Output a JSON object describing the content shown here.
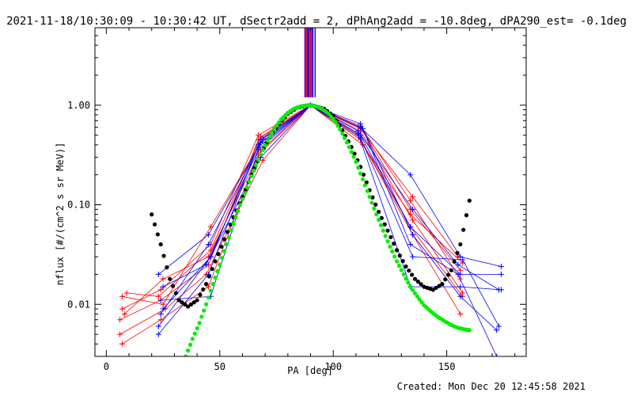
{
  "chart_data": {
    "type": "line",
    "title": "2021-11-18/10:30:09 - 10:30:42 UT, dSectr2add = 2, dPhAng2add = -10.8deg, dPA290_est= -0.1deg",
    "xlabel": "PA [deg]",
    "ylabel": "nflux [#/(cm^2 s sr MeV)]",
    "xlim": [
      -5,
      185
    ],
    "ylim": [
      0.003,
      6.0
    ],
    "yscale": "log",
    "x_ticks": [
      0,
      50,
      100,
      150
    ],
    "x_tick_labels": [
      "0",
      "50",
      "100",
      "150"
    ],
    "y_ticks": [
      0.01,
      0.1,
      1.0
    ],
    "y_tick_labels": [
      "0.01",
      "0.10",
      "1.00"
    ],
    "grid": false,
    "colors": {
      "red": "#ff0000",
      "blue": "#0000ff",
      "green": "#00ee00",
      "black": "#000000",
      "purple": "#7a0090"
    },
    "series": [
      {
        "color": "red",
        "marker": "+",
        "points": [
          [
            6,
            0.007
          ],
          [
            24,
            0.011
          ],
          [
            45,
            0.025
          ],
          [
            67,
            0.45
          ],
          [
            90,
            1.0
          ],
          [
            112,
            0.6
          ],
          [
            134,
            0.09
          ],
          [
            156,
            0.022
          ]
        ]
      },
      {
        "color": "red",
        "marker": "+",
        "points": [
          [
            7,
            0.009
          ],
          [
            24,
            0.014
          ],
          [
            46,
            0.04
          ],
          [
            67,
            0.5
          ],
          [
            90,
            1.0
          ],
          [
            112,
            0.62
          ],
          [
            134,
            0.11
          ],
          [
            156,
            0.018
          ]
        ]
      },
      {
        "color": "red",
        "marker": "+",
        "points": [
          [
            7,
            0.012
          ],
          [
            25,
            0.01
          ],
          [
            46,
            0.06
          ],
          [
            68,
            0.42
          ],
          [
            90,
            1.0
          ],
          [
            112,
            0.55
          ],
          [
            135,
            0.07
          ],
          [
            157,
            0.013
          ]
        ]
      },
      {
        "color": "red",
        "marker": "+",
        "points": [
          [
            8,
            0.008
          ],
          [
            25,
            0.018
          ],
          [
            45,
            0.03
          ],
          [
            68,
            0.35
          ],
          [
            90,
            1.0
          ],
          [
            111,
            0.5
          ],
          [
            134,
            0.06
          ],
          [
            157,
            0.012
          ]
        ]
      },
      {
        "color": "red",
        "marker": "+",
        "points": [
          [
            6,
            0.005
          ],
          [
            26,
            0.009
          ],
          [
            44,
            0.02
          ],
          [
            69,
            0.28
          ],
          [
            90,
            1.0
          ],
          [
            112,
            0.45
          ],
          [
            135,
            0.05
          ],
          [
            156,
            0.008
          ]
        ]
      },
      {
        "color": "red",
        "marker": "+",
        "points": [
          [
            7,
            0.004
          ],
          [
            24,
            0.007
          ],
          [
            45,
            0.015
          ],
          [
            67,
            0.32
          ],
          [
            90,
            1.0
          ],
          [
            113,
            0.4
          ],
          [
            134,
            0.08
          ],
          [
            157,
            0.026
          ]
        ]
      },
      {
        "color": "red",
        "marker": "+",
        "points": [
          [
            9,
            0.013
          ],
          [
            23,
            0.012
          ],
          [
            46,
            0.035
          ],
          [
            68,
            0.48
          ],
          [
            90,
            1.0
          ],
          [
            112,
            0.58
          ],
          [
            135,
            0.12
          ],
          [
            155,
            0.03
          ]
        ]
      },
      {
        "color": "blue",
        "marker": "+",
        "points": [
          [
            23,
            0.005
          ],
          [
            45,
            0.02
          ],
          [
            67,
            0.4
          ],
          [
            90,
            1.0
          ],
          [
            112,
            0.6
          ],
          [
            134,
            0.2
          ],
          [
            156,
            0.03
          ],
          [
            174,
            0.024
          ]
        ]
      },
      {
        "color": "blue",
        "marker": "+",
        "points": [
          [
            23,
            0.006
          ],
          [
            46,
            0.03
          ],
          [
            68,
            0.45
          ],
          [
            90,
            1.0
          ],
          [
            111,
            0.55
          ],
          [
            135,
            0.09
          ],
          [
            155,
            0.025
          ],
          [
            173,
            0.014
          ]
        ]
      },
      {
        "color": "blue",
        "marker": "+",
        "points": [
          [
            24,
            0.008
          ],
          [
            45,
            0.04
          ],
          [
            67,
            0.38
          ],
          [
            90,
            1.0
          ],
          [
            112,
            0.5
          ],
          [
            134,
            0.06
          ],
          [
            156,
            0.02
          ],
          [
            174,
            0.02
          ]
        ]
      },
      {
        "color": "blue",
        "marker": "+",
        "points": [
          [
            24,
            0.011
          ],
          [
            46,
            0.012
          ],
          [
            68,
            0.42
          ],
          [
            90,
            1.0
          ],
          [
            112,
            0.47
          ],
          [
            135,
            0.03
          ],
          [
            157,
            0.028
          ],
          [
            173,
            0.006
          ]
        ]
      },
      {
        "color": "blue",
        "marker": "+",
        "points": [
          [
            25,
            0.015
          ],
          [
            44,
            0.025
          ],
          [
            67,
            0.36
          ],
          [
            90,
            1.0
          ],
          [
            111,
            0.52
          ],
          [
            134,
            0.015
          ],
          [
            156,
            0.015
          ],
          [
            174,
            0.014
          ]
        ]
      },
      {
        "color": "blue",
        "marker": "+",
        "points": [
          [
            23,
            0.02
          ],
          [
            45,
            0.05
          ],
          [
            69,
            0.46
          ],
          [
            90,
            1.0
          ],
          [
            112,
            0.65
          ],
          [
            135,
            0.05
          ],
          [
            156,
            0.012
          ],
          [
            172,
            0.0055
          ]
        ]
      },
      {
        "color": "blue",
        "marker": "+",
        "points": [
          [
            25,
            0.009
          ],
          [
            46,
            0.03
          ],
          [
            68,
            0.3
          ],
          [
            90,
            1.0
          ],
          [
            113,
            0.58
          ],
          [
            134,
            0.04
          ],
          [
            155,
            0.02
          ],
          [
            172,
            0.003
          ]
        ]
      }
    ],
    "model_curves": [
      {
        "color": "black",
        "marker": "dots",
        "x": [
          20,
          24,
          28,
          32,
          36,
          40,
          44,
          48,
          52,
          56,
          60,
          64,
          68,
          72,
          76,
          80,
          84,
          88,
          90,
          92,
          96,
          100,
          104,
          108,
          112,
          116,
          120,
          124,
          128,
          132,
          136,
          140,
          144,
          148,
          152,
          156,
          160
        ],
        "y": [
          0.08,
          0.04,
          0.018,
          0.011,
          0.0095,
          0.011,
          0.016,
          0.027,
          0.045,
          0.075,
          0.12,
          0.2,
          0.32,
          0.48,
          0.65,
          0.82,
          0.94,
          0.99,
          1.0,
          0.98,
          0.92,
          0.78,
          0.56,
          0.38,
          0.24,
          0.14,
          0.085,
          0.055,
          0.035,
          0.024,
          0.018,
          0.015,
          0.014,
          0.016,
          0.022,
          0.04,
          0.11
        ]
      },
      {
        "color": "green",
        "marker": "dots",
        "x": [
          35,
          38,
          41,
          44,
          47,
          50,
          53,
          56,
          59,
          62,
          65,
          68,
          71,
          74,
          77,
          80,
          83,
          86,
          89,
          90,
          92,
          95,
          98,
          101,
          104,
          107,
          110,
          113,
          116,
          119,
          122,
          125,
          128,
          131,
          134,
          137,
          140,
          143,
          146,
          149,
          152,
          155,
          158,
          160
        ],
        "y": [
          0.003,
          0.0045,
          0.0065,
          0.01,
          0.016,
          0.025,
          0.04,
          0.065,
          0.1,
          0.15,
          0.22,
          0.32,
          0.44,
          0.58,
          0.72,
          0.84,
          0.93,
          0.98,
          1.0,
          1.0,
          0.98,
          0.92,
          0.82,
          0.68,
          0.52,
          0.38,
          0.27,
          0.18,
          0.12,
          0.08,
          0.055,
          0.038,
          0.027,
          0.02,
          0.015,
          0.012,
          0.0098,
          0.0085,
          0.0075,
          0.0068,
          0.0062,
          0.0058,
          0.0056,
          0.0055
        ]
      }
    ],
    "vertical_lines": [
      {
        "x": 87.5,
        "color": "purple"
      },
      {
        "x": 88.0,
        "color": "red"
      },
      {
        "x": 88.5,
        "color": "purple"
      },
      {
        "x": 89.0,
        "color": "blue"
      },
      {
        "x": 89.5,
        "color": "purple"
      },
      {
        "x": 90.0,
        "color": "red"
      },
      {
        "x": 90.5,
        "color": "purple"
      },
      {
        "x": 91.0,
        "color": "blue"
      },
      {
        "x": 92.0,
        "color": "blue"
      }
    ],
    "vertical_line_y_range": [
      1.2,
      6.0
    ]
  },
  "footer": {
    "created": "Created: Mon Dec 20 12:45:58 2021"
  }
}
